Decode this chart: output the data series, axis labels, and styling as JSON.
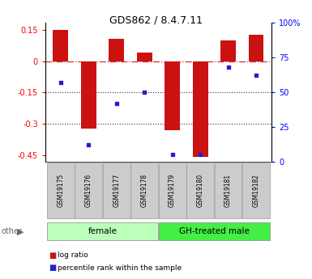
{
  "title": "GDS862 / 8.4.7.11",
  "samples": [
    "GSM19175",
    "GSM19176",
    "GSM19177",
    "GSM19178",
    "GSM19179",
    "GSM19180",
    "GSM19181",
    "GSM19182"
  ],
  "log_ratio": [
    0.15,
    -0.32,
    0.105,
    0.04,
    -0.33,
    -0.455,
    0.1,
    0.125
  ],
  "percentile_rank": [
    57,
    12,
    42,
    50,
    5,
    5,
    68,
    62
  ],
  "groups": [
    {
      "label": "female",
      "indices": [
        0,
        1,
        2,
        3
      ],
      "color": "#bbffbb"
    },
    {
      "label": "GH-treated male",
      "indices": [
        4,
        5,
        6,
        7
      ],
      "color": "#44ee44"
    }
  ],
  "ylim_left": [
    -0.48,
    0.185
  ],
  "ylim_right": [
    0,
    100
  ],
  "yticks_left": [
    0.15,
    0,
    -0.15,
    -0.3,
    -0.45
  ],
  "yticks_right": [
    100,
    75,
    50,
    25,
    0
  ],
  "bar_color": "#cc1111",
  "dot_color": "#2222cc",
  "bar_width": 0.55,
  "zero_line_color": "#cc3333",
  "grid_line_color": "#333333",
  "background_color": "#ffffff",
  "legend_log_ratio": "log ratio",
  "legend_percentile": "percentile rank within the sample"
}
